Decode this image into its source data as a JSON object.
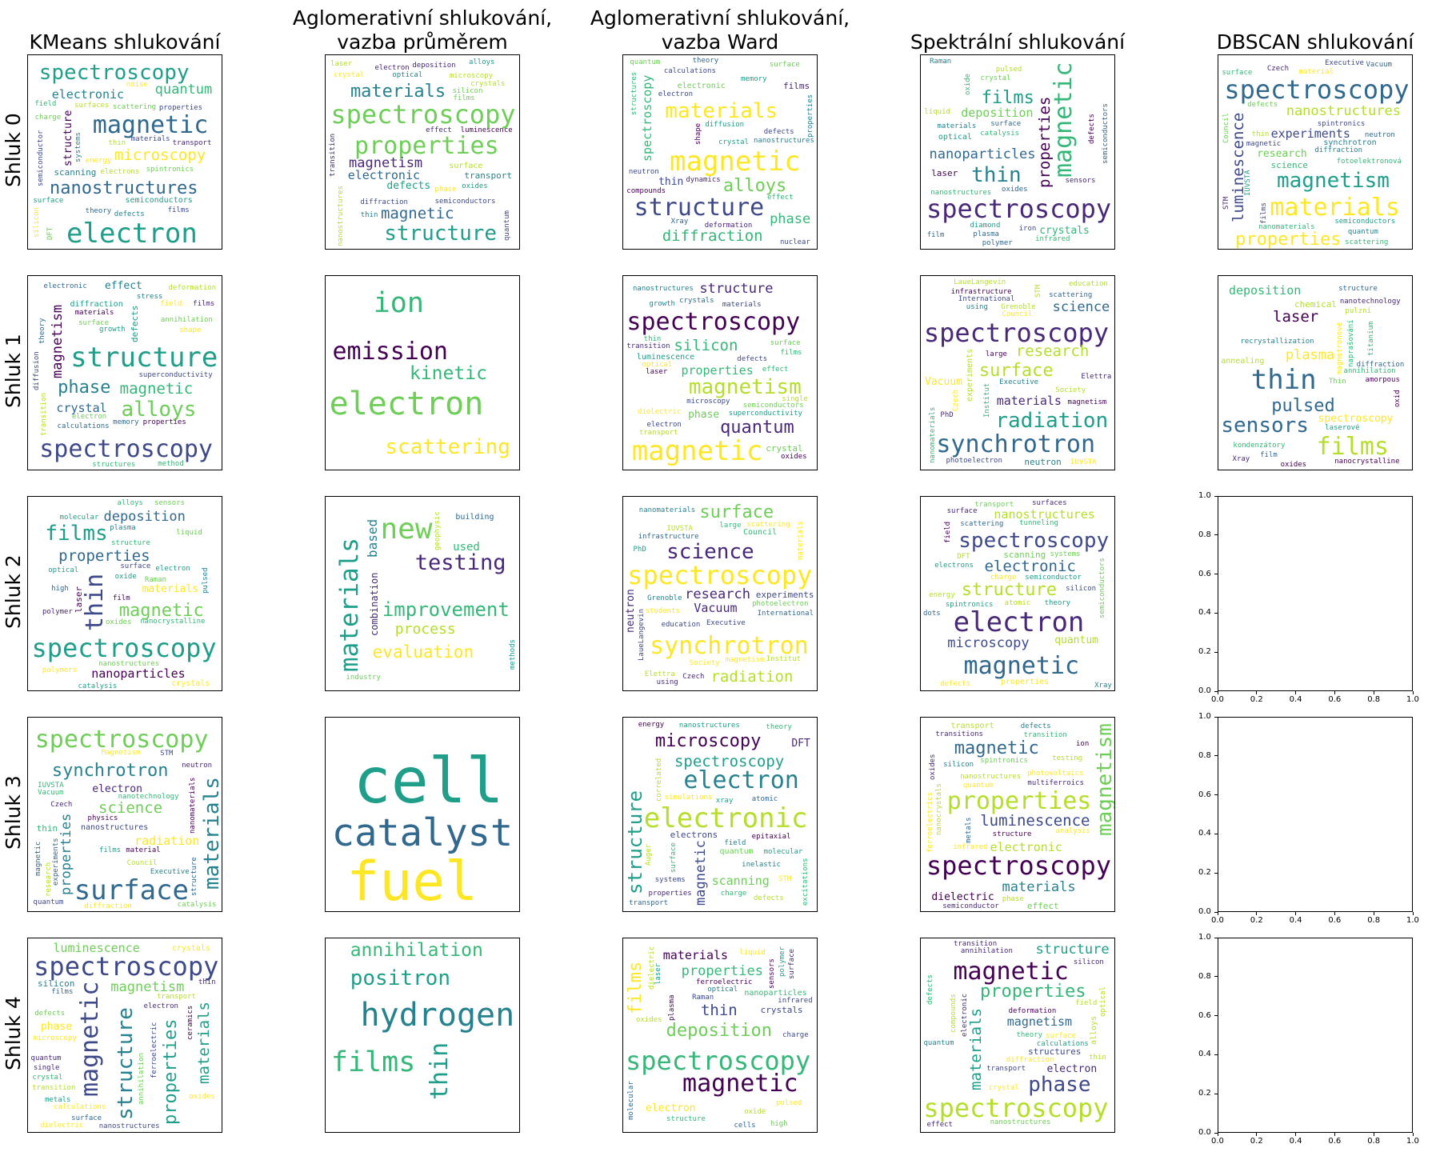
{
  "colors": [
    "#440154",
    "#482878",
    "#3e4989",
    "#31688e",
    "#26828e",
    "#1f9e89",
    "#35b779",
    "#6ece58",
    "#b5de2b",
    "#fde725"
  ],
  "columns": [
    {
      "title_lines": [
        "KMeans shlukování"
      ]
    },
    {
      "title_lines": [
        "Aglomerativní shlukování,",
        "vazba průměrem"
      ]
    },
    {
      "title_lines": [
        "Aglomerativní shlukování,",
        "vazba Ward"
      ]
    },
    {
      "title_lines": [
        "Spektrální shlukování"
      ]
    },
    {
      "title_lines": [
        "DBSCAN shlukování"
      ]
    }
  ],
  "rows": [
    "Shluk 0",
    "Shluk 1",
    "Shluk 2",
    "Shluk 3",
    "Shluk 4"
  ],
  "empty_axes": {
    "ticks": [
      "0.0",
      "0.2",
      "0.4",
      "0.6",
      "0.8",
      "1.0"
    ],
    "xlim": [
      0,
      1
    ],
    "ylim": [
      0,
      1
    ]
  },
  "chart_data": {
    "type": "wordcloud",
    "panels": [
      {
        "col": 0,
        "row": 0,
        "words": [
          "electron",
          "magnetic",
          "spectroscopy",
          "nanostructures",
          "microscopy",
          "quantum",
          "electronic",
          "structure",
          "scanning",
          "semiconductors",
          "semiconductor",
          "scattering",
          "transport",
          "charge",
          "spintronics",
          "defects",
          "surface",
          "thin",
          "films",
          "energy",
          "properties",
          "field",
          "silicon",
          "theory",
          "DFT",
          "electrons",
          "systems",
          "noise",
          "surfaces",
          "materials"
        ]
      },
      {
        "col": 1,
        "row": 0,
        "words": [
          "spectroscopy",
          "properties",
          "structure",
          "materials",
          "magnetic",
          "magnetism",
          "electronic",
          "defects",
          "transport",
          "surface",
          "alloys",
          "thin",
          "phase",
          "quantum",
          "crystal",
          "silicon",
          "electron",
          "nanostructures",
          "films",
          "microscopy",
          "effect",
          "transition",
          "deposition",
          "luminescence",
          "diffraction",
          "semiconductors",
          "crystals",
          "oxides",
          "optical",
          "laser"
        ]
      },
      {
        "col": 2,
        "row": 0,
        "words": [
          "magnetic",
          "structure",
          "materials",
          "alloys",
          "diffraction",
          "phase",
          "spectroscopy",
          "thin",
          "films",
          "electronic",
          "structures",
          "surface",
          "memory",
          "defects",
          "deformation",
          "calculations",
          "effect",
          "quantum",
          "properties",
          "nuclear",
          "theory",
          "nanostructures",
          "electron",
          "diffusion",
          "dynamics",
          "shape",
          "Xray",
          "neutron",
          "compounds",
          "crystal"
        ]
      },
      {
        "col": 3,
        "row": 0,
        "words": [
          "spectroscopy",
          "magnetic",
          "thin",
          "films",
          "properties",
          "nanoparticles",
          "deposition",
          "crystals",
          "laser",
          "optical",
          "oxides",
          "surface",
          "materials",
          "plasma",
          "Raman",
          "catalysis",
          "liquid",
          "oxide",
          "pulsed",
          "defects",
          "iron",
          "crystal",
          "polymer",
          "diamond",
          "infrared",
          "semiconductors",
          "nanostructures",
          "film",
          "sensors",
          "nanocrystalline"
        ]
      },
      {
        "col": 4,
        "row": 0,
        "words": [
          "spectroscopy",
          "materials",
          "magnetism",
          "properties",
          "luminescence",
          "nanostructures",
          "experiments",
          "research",
          "science",
          "synchrotron",
          "surface",
          "magnetic",
          "spintronics",
          "Vacuum",
          "quantum",
          "Council",
          "IUVSTA",
          "films",
          "neutron",
          "diffraction",
          "thin",
          "Czech",
          "semiconductors",
          "material",
          "defects",
          "scattering",
          "Executive",
          "STM",
          "fotoelektronová",
          "nanomaterials"
        ]
      },
      {
        "col": 0,
        "row": 1,
        "words": [
          "structure",
          "spectroscopy",
          "alloys",
          "phase",
          "magnetic",
          "magnetism",
          "crystal",
          "effect",
          "defects",
          "diffraction",
          "theory",
          "calculations",
          "properties",
          "materials",
          "structures",
          "surface",
          "deformation",
          "annihilation",
          "transition",
          "superconductivity",
          "stress",
          "electronic",
          "growth",
          "electron",
          "field",
          "method",
          "memory",
          "shape",
          "diffusion",
          "films"
        ]
      },
      {
        "col": 1,
        "row": 1,
        "words": [
          "electron",
          "ion",
          "emission",
          "scattering",
          "kinetic"
        ]
      },
      {
        "col": 2,
        "row": 1,
        "words": [
          "magnetic",
          "spectroscopy",
          "magnetism",
          "quantum",
          "silicon",
          "structure",
          "properties",
          "phase",
          "crystal",
          "luminescence",
          "defects",
          "electron",
          "semiconductors",
          "materials",
          "transport",
          "thin",
          "microscopy",
          "dielectric",
          "surface",
          "effect",
          "films",
          "oxides",
          "optical",
          "superconductivity",
          "transition",
          "crystals",
          "nanostructures",
          "single",
          "growth",
          "laser"
        ]
      },
      {
        "col": 3,
        "row": 1,
        "words": [
          "spectroscopy",
          "synchrotron",
          "radiation",
          "surface",
          "research",
          "science",
          "materials",
          "Vacuum",
          "neutron",
          "experiments",
          "Council",
          "infrastructure",
          "nanomaterials",
          "education",
          "Society",
          "Institut",
          "LaueLangevin",
          "Grenoble",
          "scattering",
          "magnetism",
          "large",
          "PhD",
          "STM",
          "photoelectron",
          "International",
          "IUVSTA",
          "Executive",
          "Czech",
          "Elettra",
          "using"
        ]
      },
      {
        "col": 4,
        "row": 1,
        "words": [
          "thin",
          "films",
          "sensors",
          "pulsed",
          "laser",
          "plasma",
          "deposition",
          "spectroscopy",
          "chemical",
          "annealing",
          "annihilation",
          "Thin",
          "film",
          "recrystallization",
          "oxid",
          "nanocrystalline",
          "Xray",
          "diffraction",
          "structure",
          "titanium",
          "oxides",
          "amorpous",
          "nanotechnology",
          "naprašování",
          "laserové",
          "pulzní",
          "magnetronové",
          "kondenzátory"
        ]
      },
      {
        "col": 0,
        "row": 2,
        "words": [
          "spectroscopy",
          "thin",
          "films",
          "magnetic",
          "properties",
          "deposition",
          "nanoparticles",
          "materials",
          "laser",
          "crystals",
          "plasma",
          "molecular",
          "pulsed",
          "optical",
          "nanocrystalline",
          "catalysis",
          "structure",
          "Raman",
          "liquid",
          "polymers",
          "nanostructures",
          "high",
          "film",
          "oxide",
          "oxides",
          "alloys",
          "polymer",
          "surface",
          "electron",
          "sensors"
        ]
      },
      {
        "col": 1,
        "row": 2,
        "words": [
          "new",
          "materials",
          "testing",
          "improvement",
          "evaluation",
          "process",
          "based",
          "used",
          "combination",
          "building",
          "methods",
          "industry",
          "geophysic"
        ]
      },
      {
        "col": 2,
        "row": 2,
        "words": [
          "spectroscopy",
          "synchrotron",
          "science",
          "surface",
          "radiation",
          "research",
          "Vacuum",
          "neutron",
          "experiments",
          "Council",
          "Executive",
          "materials",
          "IUVSTA",
          "Czech",
          "magnetism",
          "nanomaterials",
          "International",
          "using",
          "scattering",
          "Elettra",
          "LaueLangevin",
          "PhD",
          "education",
          "students",
          "photoelectron",
          "Society",
          "Institut",
          "large",
          "infrastructure",
          "Grenoble"
        ]
      },
      {
        "col": 3,
        "row": 2,
        "words": [
          "electron",
          "magnetic",
          "spectroscopy",
          "structure",
          "electronic",
          "microscopy",
          "nanostructures",
          "quantum",
          "scanning",
          "properties",
          "energy",
          "transport",
          "atomic",
          "charge",
          "field",
          "electrons",
          "spintronics",
          "semiconductors",
          "tunneling",
          "scattering",
          "surface",
          "theory",
          "defects",
          "dots",
          "Xray",
          "DFT",
          "surfaces",
          "semiconductor",
          "systems",
          "silicon"
        ]
      },
      {
        "col": 0,
        "row": 3,
        "words": [
          "surface",
          "spectroscopy",
          "materials",
          "synchrotron",
          "science",
          "properties",
          "radiation",
          "electron",
          "thin",
          "nanostructures",
          "films",
          "research",
          "Vacuum",
          "Czech",
          "IUVSTA",
          "STM",
          "Council",
          "diffraction",
          "Executive",
          "physics",
          "magnetic",
          "nanomaterials",
          "nanotechnology",
          "quantum",
          "neutron",
          "material",
          "experiments",
          "structure",
          "catalysis",
          "Magnetism"
        ]
      },
      {
        "col": 1,
        "row": 3,
        "words": [
          "cell",
          "fuel",
          "catalyst"
        ]
      },
      {
        "col": 2,
        "row": 3,
        "words": [
          "electronic",
          "electron",
          "structure",
          "microscopy",
          "spectroscopy",
          "magnetic",
          "scanning",
          "DFT",
          "electrons",
          "quantum",
          "xray",
          "excitations",
          "molecular",
          "defects",
          "charge",
          "energy",
          "transport",
          "theory",
          "correlated",
          "Auger",
          "nanostructures",
          "inelastic",
          "epitaxial",
          "STM",
          "field",
          "properties",
          "surface",
          "atomic",
          "simulations",
          "systems"
        ]
      },
      {
        "col": 3,
        "row": 3,
        "words": [
          "spectroscopy",
          "properties",
          "magnetism",
          "magnetic",
          "luminescence",
          "materials",
          "electronic",
          "dielectric",
          "effect",
          "transport",
          "transitions",
          "testing",
          "ferroelectrics",
          "transition",
          "silicon",
          "nanocrystals",
          "structure",
          "defects",
          "analysis",
          "photovoltaics",
          "infrared",
          "nanostructures",
          "spintronics",
          "quantum",
          "semiconductor",
          "ion",
          "metals",
          "phase",
          "multiferroics",
          "oxides"
        ]
      },
      {
        "col": 0,
        "row": 4,
        "words": [
          "spectroscopy",
          "magnetic",
          "structure",
          "properties",
          "materials",
          "magnetism",
          "luminescence",
          "phase",
          "silicon",
          "crystals",
          "defects",
          "surface",
          "oxides",
          "single",
          "metals",
          "transport",
          "ferroelectric",
          "calculations",
          "films",
          "dielectric",
          "thin",
          "crystal",
          "transition",
          "electron",
          "nanostructures",
          "ceramics",
          "annihilation",
          "microscopy",
          "quantum",
          "semiconductors"
        ]
      },
      {
        "col": 1,
        "row": 4,
        "words": [
          "hydrogen",
          "films",
          "thin",
          "positron",
          "annihilation"
        ]
      },
      {
        "col": 2,
        "row": 4,
        "words": [
          "spectroscopy",
          "magnetic",
          "deposition",
          "films",
          "thin",
          "properties",
          "materials",
          "electron",
          "crystals",
          "nanoparticles",
          "oxide",
          "oxides",
          "infrared",
          "surface",
          "molecular",
          "optical",
          "structure",
          "plasma",
          "semiconductors",
          "ferroelectric",
          "sensors",
          "laser",
          "Raman",
          "pulsed",
          "liquid",
          "high",
          "cells",
          "charge",
          "polymer",
          "dielectric"
        ]
      },
      {
        "col": 3,
        "row": 4,
        "words": [
          "spectroscopy",
          "magnetic",
          "phase",
          "properties",
          "materials",
          "structure",
          "magnetism",
          "electron",
          "structures",
          "alloys",
          "defects",
          "surface",
          "crystal",
          "transition",
          "electronic",
          "diffraction",
          "calculations",
          "thin",
          "effect",
          "theory",
          "annihilation",
          "transport",
          "deformation",
          "nanostructures",
          "superconductivity",
          "quantum",
          "silicon",
          "compounds",
          "field",
          "optical"
        ]
      }
    ]
  }
}
